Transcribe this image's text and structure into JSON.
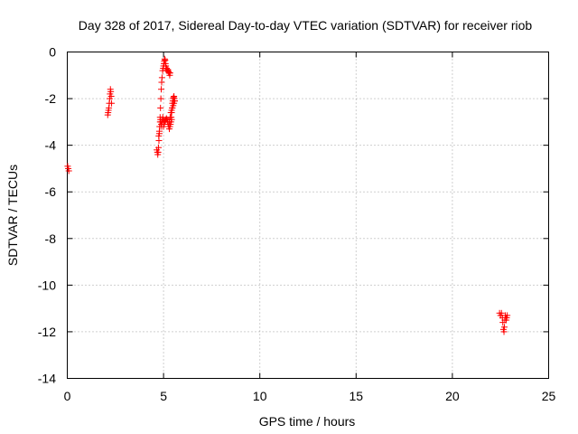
{
  "chart_data": {
    "type": "scatter",
    "title": "Day 328 of 2017, Sidereal Day-to-day VTEC variation (SDTVAR) for receiver riob",
    "xlabel": "GPS time / hours",
    "ylabel": "SDTVAR / TECUs",
    "xlim": [
      0,
      25
    ],
    "ylim": [
      -14,
      0
    ],
    "xticks": [
      0,
      5,
      10,
      15,
      20,
      25
    ],
    "yticks": [
      0,
      -2,
      -4,
      -6,
      -8,
      -10,
      -12,
      -14
    ],
    "xtick_labels": [
      "0",
      "5",
      "10",
      "15",
      "20",
      "25"
    ],
    "ytick_labels": [
      "0",
      "-2",
      "-4",
      "-6",
      "-8",
      "-10",
      "-12",
      "-14"
    ],
    "grid": true,
    "marker": "+",
    "color": "#ff0000",
    "series": [
      {
        "name": "SDTVAR",
        "x": [
          0.02,
          0.05,
          0.08,
          2.1,
          2.12,
          2.14,
          2.16,
          2.18,
          2.2,
          2.22,
          2.24,
          2.26,
          2.28,
          2.3,
          4.65,
          4.68,
          4.7,
          4.72,
          4.74,
          4.76,
          4.78,
          4.8,
          4.82,
          4.84,
          4.86,
          4.88,
          4.9,
          4.92,
          4.75,
          4.78,
          4.8,
          4.82,
          4.84,
          4.86,
          4.88,
          4.9,
          4.92,
          4.94,
          4.96,
          4.98,
          5.0,
          4.95,
          4.98,
          5.0,
          5.02,
          5.04,
          5.06,
          5.08,
          5.1,
          5.12,
          5.14,
          5.16,
          5.18,
          5.2,
          5.22,
          5.24,
          5.26,
          5.28,
          5.3,
          5.32,
          5.34,
          5.0,
          5.03,
          5.06,
          5.09,
          5.12,
          5.15,
          5.18,
          5.21,
          5.24,
          5.27,
          5.3,
          5.33,
          5.36,
          5.39,
          5.42,
          5.4,
          5.42,
          5.44,
          5.46,
          5.48,
          5.5,
          5.52,
          5.54,
          5.56,
          5.58,
          5.3,
          5.34,
          5.38,
          5.42,
          5.46,
          5.5,
          5.54,
          5.58,
          22.45,
          22.5,
          22.55,
          22.6,
          22.62,
          22.65,
          22.68,
          22.7,
          22.72,
          22.75,
          22.78,
          22.8,
          22.82,
          22.85
        ],
        "y": [
          -4.9,
          -5.0,
          -5.1,
          -2.7,
          -2.6,
          -2.5,
          -2.4,
          -2.2,
          -2.0,
          -1.8,
          -1.6,
          -1.7,
          -1.9,
          -2.2,
          -4.2,
          -4.3,
          -4.4,
          -4.3,
          -4.1,
          -3.8,
          -3.5,
          -3.2,
          -2.8,
          -2.4,
          -2.0,
          -1.6,
          -1.3,
          -1.1,
          -3.6,
          -3.4,
          -3.2,
          -3.0,
          -2.9,
          -3.0,
          -3.1,
          -3.2,
          -3.0,
          -2.9,
          -2.8,
          -2.9,
          -3.0,
          -0.8,
          -0.7,
          -0.6,
          -0.5,
          -0.4,
          -0.3,
          -0.35,
          -0.5,
          -0.6,
          -0.7,
          -0.7,
          -0.8,
          -0.8,
          -0.75,
          -0.8,
          -0.85,
          -0.9,
          -0.9,
          -1.0,
          -0.9,
          -3.2,
          -3.1,
          -3.0,
          -2.95,
          -2.9,
          -2.85,
          -2.9,
          -3.0,
          -3.1,
          -3.2,
          -3.3,
          -3.2,
          -3.1,
          -3.0,
          -2.9,
          -2.8,
          -2.6,
          -2.4,
          -2.2,
          -2.1,
          -2.0,
          -1.95,
          -1.9,
          -2.0,
          -2.1,
          -3.0,
          -2.8,
          -2.6,
          -2.5,
          -2.4,
          -2.3,
          -2.2,
          -2.1,
          -11.2,
          -11.3,
          -11.2,
          -11.4,
          -11.6,
          -11.9,
          -12.0,
          -11.8,
          -11.5,
          -11.3,
          -11.4,
          -11.5,
          -11.4,
          -11.3
        ]
      }
    ]
  }
}
